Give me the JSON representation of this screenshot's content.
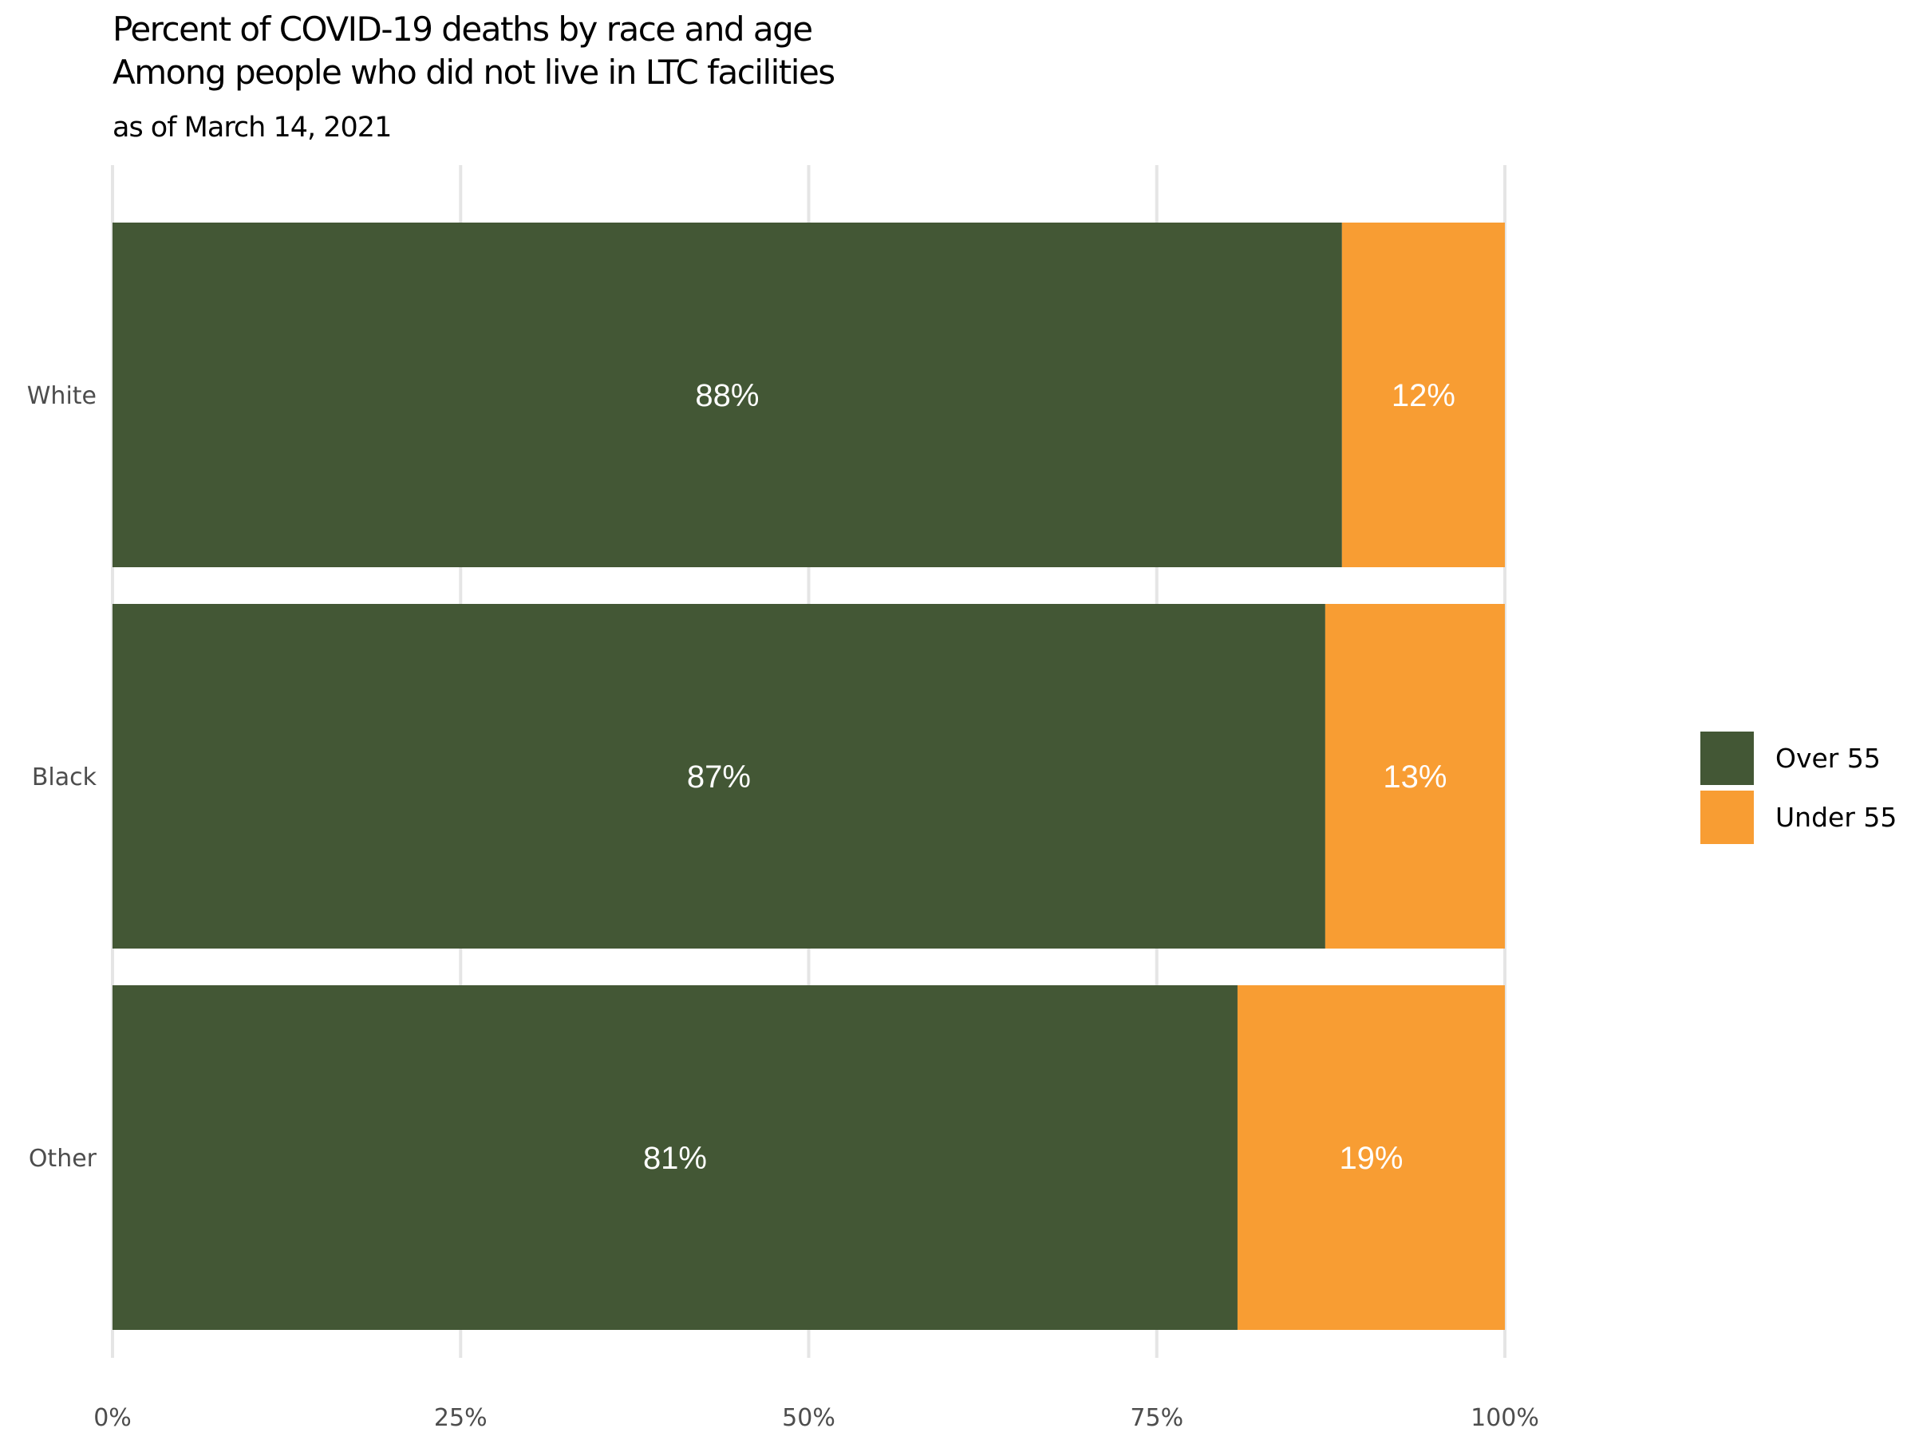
{
  "chart_data": {
    "type": "bar",
    "orientation": "horizontal",
    "stacked": true,
    "title": "Percent of COVID-19 deaths by race and age",
    "subtitle_line": "Among people who did not live in LTC facilities",
    "caption_top": "as of March 14, 2021",
    "xlabel": "",
    "ylabel": "",
    "categories": [
      "White",
      "Black",
      "Other"
    ],
    "series": [
      {
        "name": "Over 55",
        "color": "#435735",
        "values": [
          88.3,
          87.1,
          80.8
        ],
        "labels": [
          "88%",
          "87%",
          "81%"
        ]
      },
      {
        "name": "Under 55",
        "color": "#F89D33",
        "values": [
          11.7,
          12.9,
          19.2
        ],
        "labels": [
          "12%",
          "13%",
          "19%"
        ]
      }
    ],
    "xlim": [
      0,
      100
    ],
    "x_ticks": [
      0,
      25,
      50,
      75,
      100
    ],
    "x_tick_labels": [
      "0%",
      "25%",
      "50%",
      "75%",
      "100%"
    ],
    "grid": "vertical",
    "legend_position": "right",
    "legend": [
      "Over 55",
      "Under 55"
    ]
  }
}
